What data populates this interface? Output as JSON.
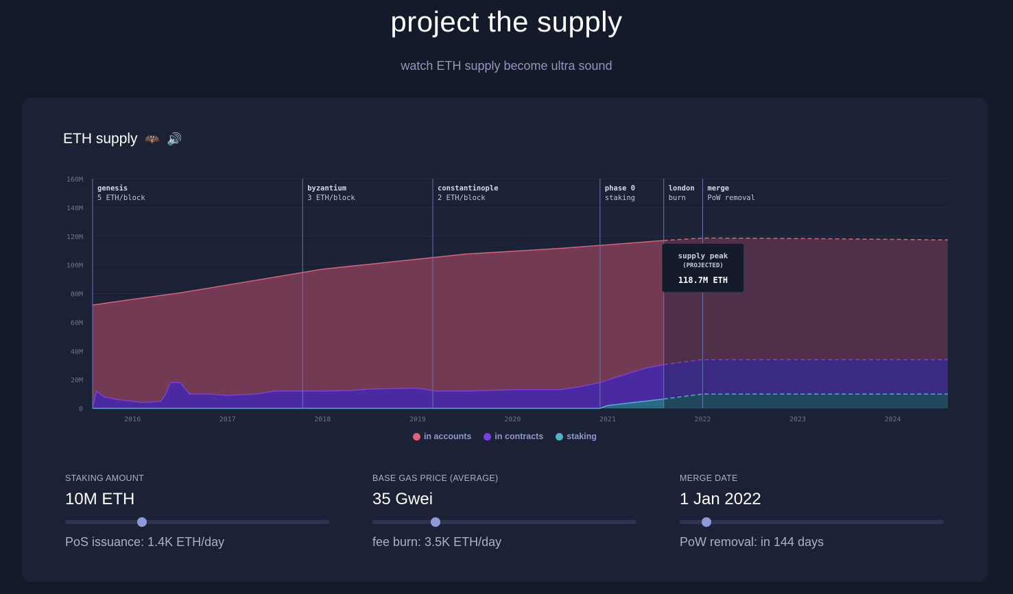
{
  "header": {
    "title": "project the supply",
    "subtitle": "watch ETH supply become ultra sound"
  },
  "card": {
    "title": "ETH supply",
    "icons": [
      "bat-icon",
      "speaker-icon"
    ]
  },
  "tooltip": {
    "title": "supply peak",
    "subtitle": "(PROJECTED)",
    "value": "118.7M ETH"
  },
  "chart_data": {
    "type": "area",
    "title": "ETH supply",
    "xlabel": "",
    "ylabel": "",
    "y_tick_labels": [
      "0",
      "20M",
      "40M",
      "60M",
      "80M",
      "100M",
      "120M",
      "140M",
      "160M"
    ],
    "y_ticks": [
      0,
      20,
      40,
      60,
      80,
      100,
      120,
      140,
      160
    ],
    "ylim": [
      0,
      160
    ],
    "x_tick_labels": [
      "2016",
      "2017",
      "2018",
      "2019",
      "2020",
      "2021",
      "2022",
      "2023",
      "2024"
    ],
    "x_ticks": [
      2016,
      2017,
      2018,
      2019,
      2020,
      2021,
      2022,
      2023,
      2024
    ],
    "xlim": [
      2015.58,
      2024.58
    ],
    "projection_start": 2021.59,
    "grid": true,
    "legend_position": "bottom-center",
    "colors": {
      "accounts": "#e0607a",
      "contracts": "#7b3fe4",
      "staking": "#4ab5c4"
    },
    "events": [
      {
        "x": 2015.58,
        "name": "genesis",
        "detail": "5 ETH/block"
      },
      {
        "x": 2017.79,
        "name": "byzantium",
        "detail": "3 ETH/block"
      },
      {
        "x": 2019.16,
        "name": "constantinople",
        "detail": "2 ETH/block"
      },
      {
        "x": 2020.92,
        "name": "phase 0",
        "detail": "staking"
      },
      {
        "x": 2021.59,
        "name": "london",
        "detail": "burn"
      },
      {
        "x": 2022.0,
        "name": "merge",
        "detail": "PoW removal"
      }
    ],
    "series": [
      {
        "name": "in accounts",
        "x": [
          2015.58,
          2016.0,
          2016.5,
          2017.0,
          2017.5,
          2018.0,
          2018.5,
          2019.0,
          2019.5,
          2020.0,
          2020.5,
          2021.0,
          2021.59,
          2022.0,
          2022.5,
          2023.0,
          2023.5,
          2024.0,
          2024.58
        ],
        "values": [
          72.0,
          76.0,
          80.5,
          86.0,
          91.5,
          97.0,
          100.5,
          104.0,
          107.5,
          109.5,
          111.5,
          114.0,
          117.0,
          118.7,
          118.6,
          118.4,
          118.1,
          117.8,
          117.4
        ]
      },
      {
        "name": "in contracts",
        "x": [
          2015.58,
          2015.62,
          2015.7,
          2015.85,
          2016.0,
          2016.1,
          2016.3,
          2016.35,
          2016.4,
          2016.5,
          2016.55,
          2016.6,
          2016.8,
          2017.0,
          2017.3,
          2017.5,
          2018.0,
          2018.3,
          2018.5,
          2019.0,
          2019.2,
          2019.5,
          2020.0,
          2020.5,
          2020.7,
          2020.92,
          2021.2,
          2021.4,
          2021.59,
          2022.0,
          2022.5,
          2023.0,
          2023.5,
          2024.0,
          2024.58
        ],
        "values": [
          0.0,
          12.0,
          8.0,
          6.0,
          5.0,
          4.0,
          5.0,
          10.0,
          18.0,
          18.0,
          14.0,
          10.0,
          10.0,
          9.0,
          10.0,
          12.0,
          12.0,
          12.5,
          13.5,
          14.0,
          12.0,
          12.0,
          13.0,
          13.0,
          15.0,
          18.0,
          24.0,
          28.0,
          30.5,
          34.0,
          34.0,
          34.0,
          34.0,
          34.0,
          34.0
        ]
      },
      {
        "name": "staking",
        "x": [
          2015.58,
          2020.92,
          2021.0,
          2021.2,
          2021.4,
          2021.59,
          2022.0,
          2022.5,
          2023.0,
          2023.5,
          2024.0,
          2024.58
        ],
        "values": [
          0.0,
          0.0,
          2.0,
          3.5,
          5.0,
          6.5,
          10.0,
          10.0,
          10.0,
          10.0,
          10.0,
          10.0
        ]
      }
    ]
  },
  "controls": {
    "staking": {
      "label": "STAKING AMOUNT",
      "value": "10M ETH",
      "note": "PoS issuance: 1.4K ETH/day",
      "level": 0.29
    },
    "gas": {
      "label": "BASE GAS PRICE (AVERAGE)",
      "value": "35 Gwei",
      "note": "fee burn: 3.5K ETH/day",
      "level": 0.24
    },
    "merge": {
      "label": "MERGE DATE",
      "value": "1 Jan 2022",
      "note": "PoW removal: in 144 days",
      "level": 0.1
    }
  }
}
